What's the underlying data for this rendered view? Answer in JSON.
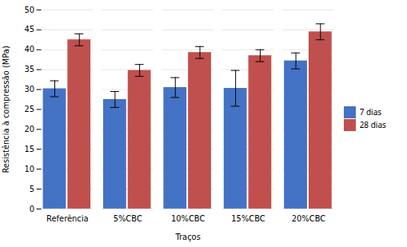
{
  "chart_data": {
    "type": "bar",
    "xlabel": "Traços",
    "ylabel": "Resistência à compressão (MPa)",
    "categories": [
      "Referência",
      "5%CBC",
      "10%CBC",
      "15%CBC",
      "20%CBC"
    ],
    "series": [
      {
        "name": "7 dias",
        "color": "#4472C4",
        "values": [
          30.2,
          27.5,
          30.5,
          30.3,
          37.2
        ],
        "errors": [
          2.0,
          2.0,
          2.5,
          4.5,
          2.0
        ]
      },
      {
        "name": "28 dias",
        "color": "#C0504D",
        "values": [
          42.5,
          34.8,
          39.3,
          38.5,
          44.5
        ],
        "errors": [
          1.5,
          1.5,
          1.5,
          1.5,
          2.0
        ]
      }
    ],
    "ylim": [
      0,
      50
    ],
    "yticks": [
      0,
      5,
      10,
      15,
      20,
      25,
      30,
      35,
      40,
      45,
      50
    ],
    "grid": true,
    "legend": "right"
  }
}
